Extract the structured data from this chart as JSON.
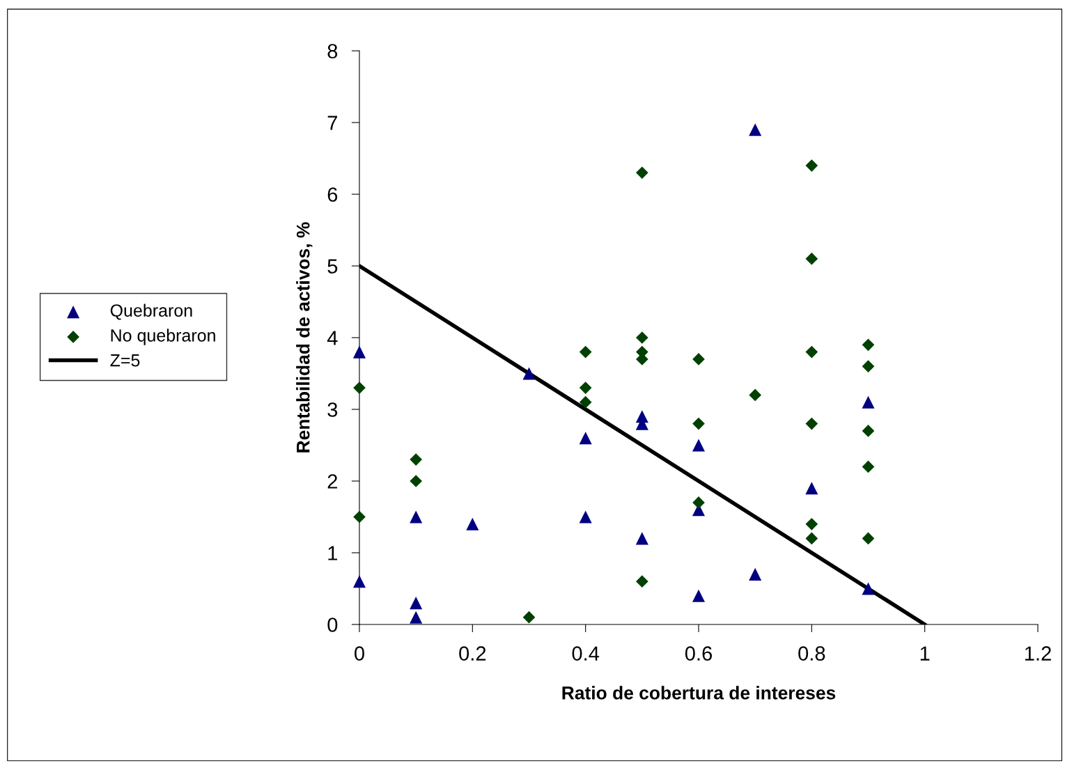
{
  "chart_data": {
    "type": "scatter",
    "xlabel": "Ratio de cobertura de intereses",
    "ylabel": "Rentabilidad de activos, %",
    "xlim": [
      0,
      1.2
    ],
    "xticks": [
      0,
      0.2,
      0.4,
      0.6,
      0.8,
      1,
      1.2
    ],
    "ylim": [
      0,
      8
    ],
    "yticks": [
      0,
      1,
      2,
      3,
      4,
      5,
      6,
      7,
      8
    ],
    "grid": false,
    "legend": "left",
    "series": [
      {
        "name": "Quebraron",
        "color": "#000080",
        "marker": "triangle",
        "x": [
          0,
          0,
          0.1,
          0.1,
          0.1,
          0.2,
          0.3,
          0.4,
          0.4,
          0.5,
          0.5,
          0.5,
          0.6,
          0.6,
          0.6,
          0.7,
          0.7,
          0.8,
          0.9,
          0.9
        ],
        "values": [
          3.8,
          0.6,
          1.5,
          0.3,
          0.1,
          1.4,
          3.5,
          2.6,
          1.5,
          2.9,
          2.8,
          1.2,
          2.5,
          1.6,
          0.4,
          6.9,
          0.7,
          1.9,
          3.1,
          0.5
        ]
      },
      {
        "name": "No quebraron",
        "color": "#004000",
        "marker": "diamond",
        "x": [
          0,
          0,
          0.1,
          0.1,
          0.3,
          0.4,
          0.4,
          0.4,
          0.5,
          0.5,
          0.5,
          0.5,
          0.5,
          0.6,
          0.6,
          0.6,
          0.7,
          0.8,
          0.8,
          0.8,
          0.8,
          0.8,
          0.8,
          0.9,
          0.9,
          0.9,
          0.9,
          0.9
        ],
        "values": [
          3.3,
          1.5,
          2.3,
          2.0,
          0.1,
          3.8,
          3.3,
          3.1,
          6.3,
          4.0,
          3.8,
          3.7,
          0.6,
          3.7,
          2.8,
          1.7,
          3.2,
          6.4,
          5.1,
          3.8,
          2.8,
          1.4,
          1.2,
          3.9,
          3.6,
          2.7,
          2.2,
          1.2
        ]
      },
      {
        "name": "Z=5",
        "type": "line",
        "color": "#000000",
        "marker": "none",
        "line_style": "solid",
        "x": [
          0,
          1
        ],
        "values": [
          5,
          0
        ]
      }
    ]
  }
}
